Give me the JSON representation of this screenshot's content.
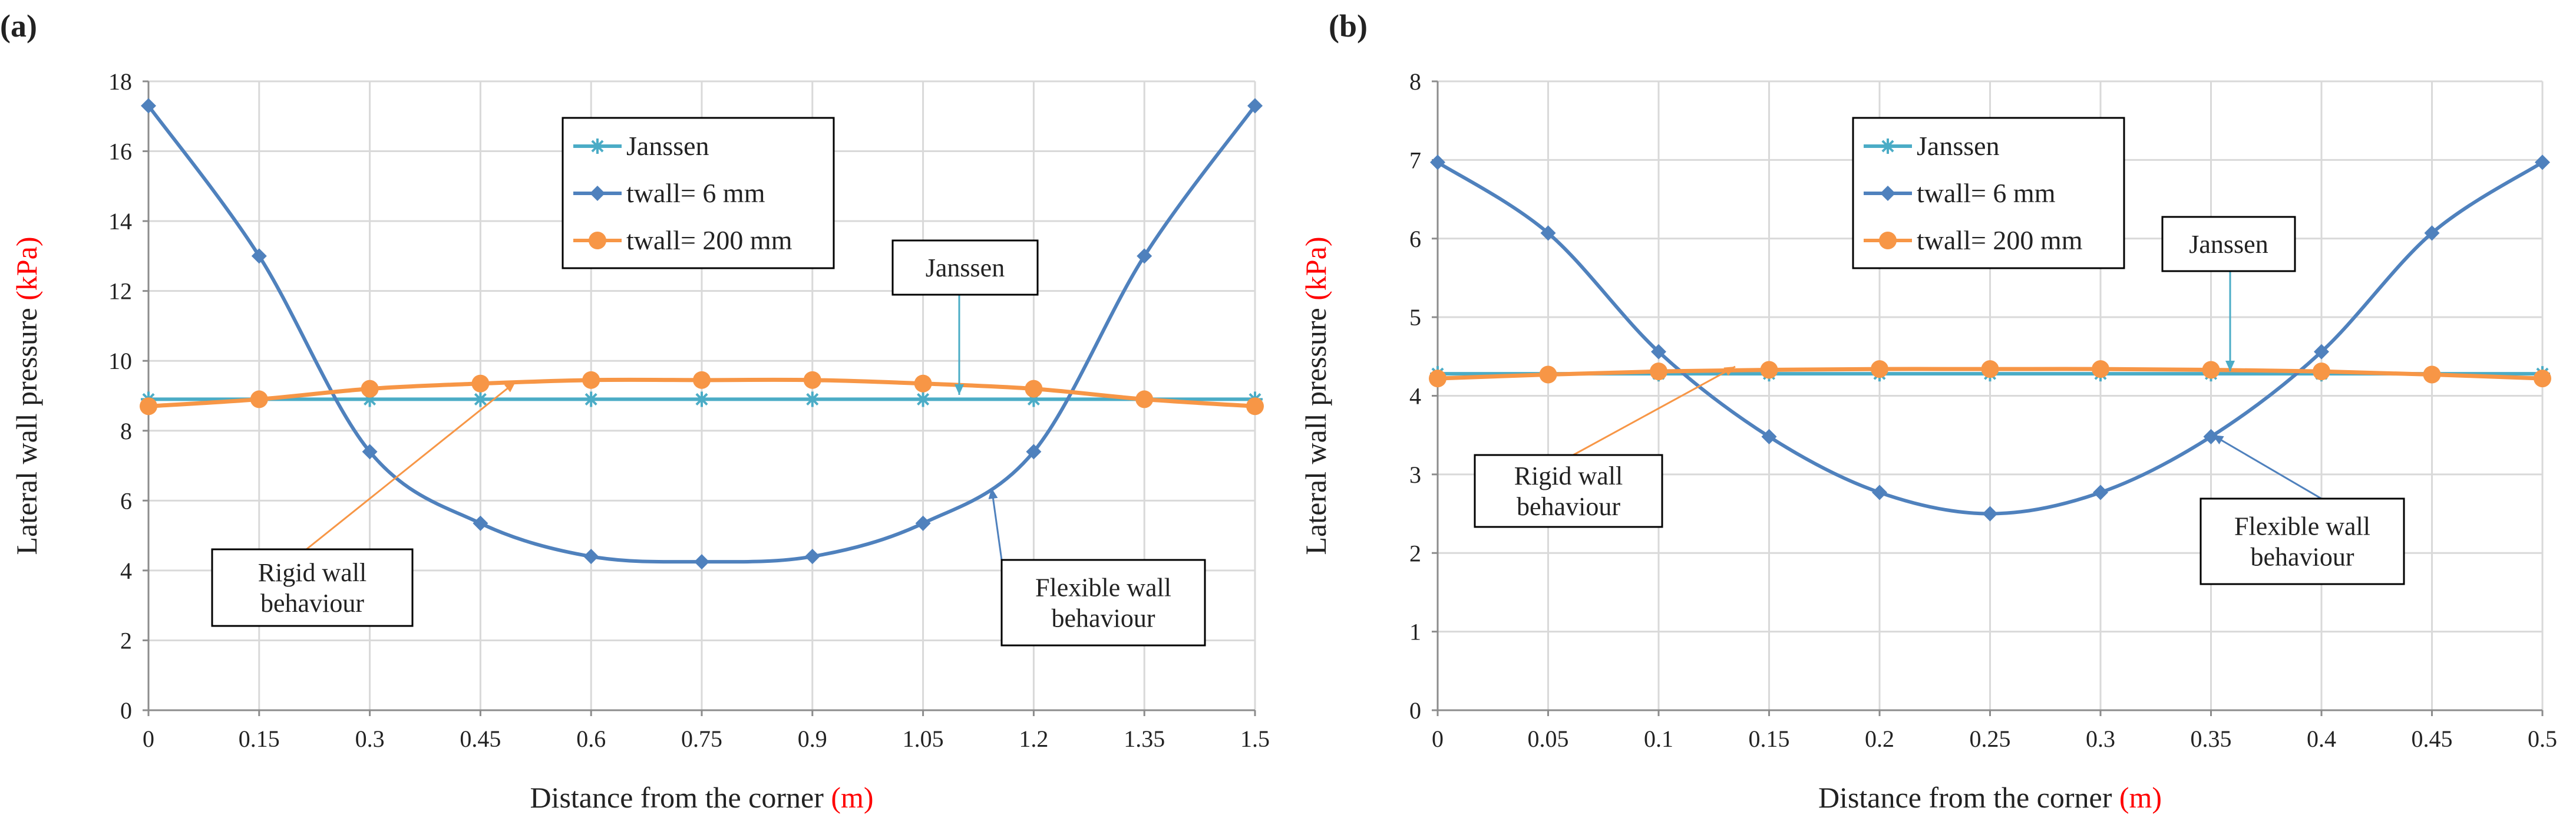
{
  "colors": {
    "janssen": "#4bacc6",
    "thin": "#4f81bd",
    "thick": "#f79646",
    "unit": "#ff0000",
    "grid": "#d9d9d9",
    "text": "#222222"
  },
  "legend": {
    "janssen": "Janssen",
    "thin": "twall= 6 mm",
    "thick": "twall= 200 mm"
  },
  "chart_data": [
    {
      "type": "line",
      "panel": "(a)",
      "ylabel_main": "Lateral wall pressure",
      "ylabel_unit": "(kPa)",
      "xlabel_main": "Distance from the corner",
      "xlabel_unit": "(m)",
      "ylim": [
        0,
        18
      ],
      "y_ticks": [
        0,
        2,
        4,
        6,
        8,
        10,
        12,
        14,
        16,
        18
      ],
      "x": [
        0,
        0.15,
        0.3,
        0.45,
        0.6,
        0.75,
        0.9,
        1.05,
        1.2,
        1.35,
        1.5
      ],
      "x_tick_labels": [
        "0",
        "0.15",
        "0.3",
        "0.45",
        "0.6",
        "0.75",
        "0.9",
        "1.05",
        "1.2",
        "1.35",
        "1.5"
      ],
      "grid": true,
      "series": [
        {
          "key": "janssen",
          "name": "Janssen",
          "marker": "star",
          "values": [
            8.9,
            8.9,
            8.9,
            8.9,
            8.9,
            8.9,
            8.9,
            8.9,
            8.9,
            8.9,
            8.9
          ]
        },
        {
          "key": "thin",
          "name": "twall= 6 mm",
          "marker": "diamond",
          "values": [
            17.3,
            13.0,
            7.4,
            5.35,
            4.4,
            4.25,
            4.4,
            5.35,
            7.4,
            13.0,
            17.3
          ]
        },
        {
          "key": "thick",
          "name": "twall= 200 mm",
          "marker": "circle",
          "values": [
            8.7,
            8.9,
            9.2,
            9.35,
            9.45,
            9.45,
            9.45,
            9.35,
            9.2,
            8.9,
            8.7
          ]
        }
      ],
      "annotations": [
        {
          "lines": [
            "Janssen"
          ]
        },
        {
          "lines": [
            "Rigid wall",
            "behaviour"
          ]
        },
        {
          "lines": [
            "Flexible wall",
            "behaviour"
          ]
        }
      ]
    },
    {
      "type": "line",
      "panel": "(b)",
      "ylabel_main": "Lateral wall pressure",
      "ylabel_unit": "(kPa)",
      "xlabel_main": "Distance from the corner",
      "xlabel_unit": "(m)",
      "ylim": [
        0,
        8
      ],
      "y_ticks": [
        0,
        1,
        2,
        3,
        4,
        5,
        6,
        7,
        8
      ],
      "x": [
        0,
        0.05,
        0.1,
        0.15,
        0.2,
        0.25,
        0.3,
        0.35,
        0.4,
        0.45,
        0.5
      ],
      "x_tick_labels": [
        "0",
        "0.05",
        "0.1",
        "0.15",
        "0.2",
        "0.25",
        "0.3",
        "0.35",
        "0.4",
        "0.45",
        "0.5"
      ],
      "grid": true,
      "series": [
        {
          "key": "janssen",
          "name": "Janssen",
          "marker": "star",
          "values": [
            4.28,
            4.28,
            4.28,
            4.28,
            4.28,
            4.28,
            4.28,
            4.28,
            4.28,
            4.28,
            4.28
          ]
        },
        {
          "key": "thin",
          "name": "twall= 6 mm",
          "marker": "diamond",
          "values": [
            6.97,
            6.07,
            4.56,
            3.48,
            2.77,
            2.5,
            2.77,
            3.48,
            4.56,
            6.07,
            6.97
          ]
        },
        {
          "key": "thick",
          "name": "twall= 200 mm",
          "marker": "circle",
          "values": [
            4.22,
            4.27,
            4.31,
            4.33,
            4.34,
            4.34,
            4.34,
            4.33,
            4.31,
            4.27,
            4.22
          ]
        }
      ],
      "annotations": [
        {
          "lines": [
            "Janssen"
          ]
        },
        {
          "lines": [
            "Rigid wall",
            "behaviour"
          ]
        },
        {
          "lines": [
            "Flexible wall",
            "behaviour"
          ]
        }
      ]
    }
  ]
}
